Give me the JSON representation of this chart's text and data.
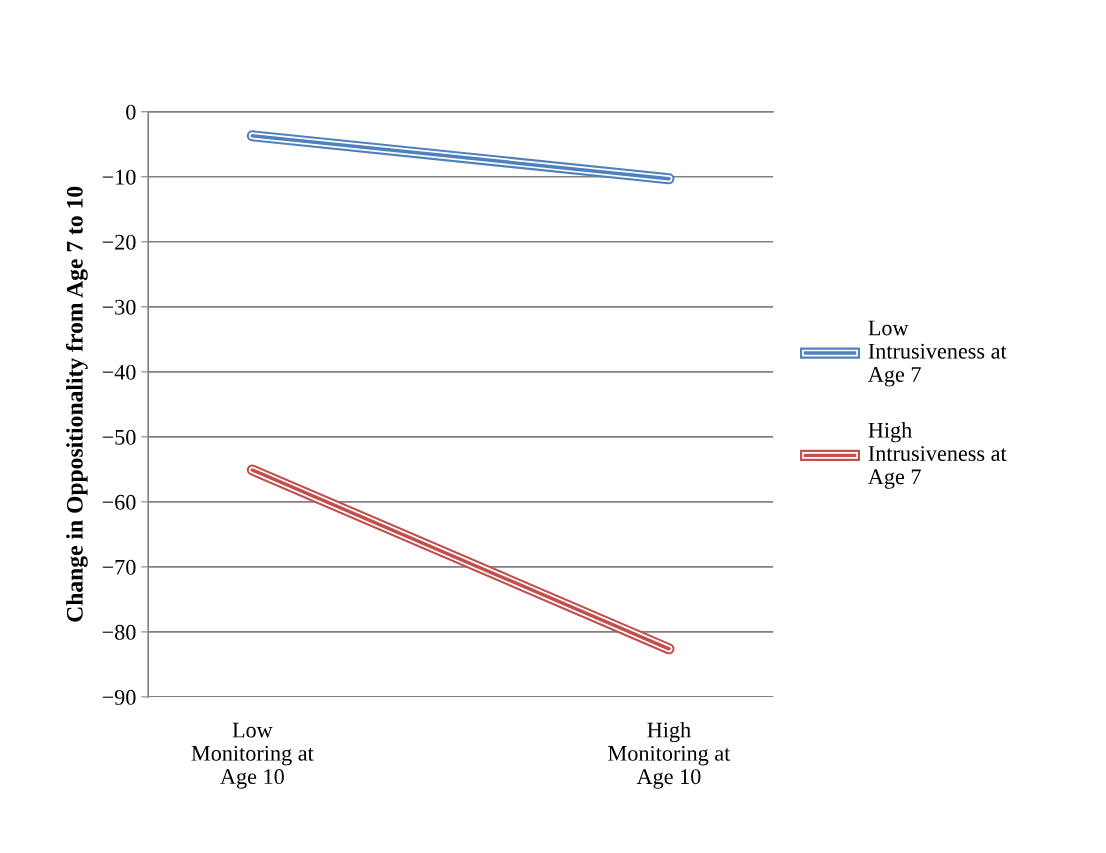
{
  "chart_data": {
    "type": "line",
    "ylabel": "Change in Oppositionality from Age 7 to 10",
    "categories": [
      "Low\nMonitoring at\nAge 10",
      "High\nMonitoring at\nAge 10"
    ],
    "series": [
      {
        "name": "Low\nIntrusiveness at\nAge 7",
        "color": "#4f81bd",
        "values": [
          -3.7,
          -10.3
        ]
      },
      {
        "name": "High\nIntrusiveness at\nAge 7",
        "color": "#c0504d",
        "values": [
          -55.1,
          -82.6
        ]
      }
    ],
    "ylim": [
      -90,
      0
    ],
    "yticks": [
      0,
      -10,
      -20,
      -30,
      -40,
      -50,
      -60,
      -70,
      -80,
      -90
    ],
    "grid": "y",
    "legend": "right",
    "marker": "none",
    "line_style": "solid"
  }
}
